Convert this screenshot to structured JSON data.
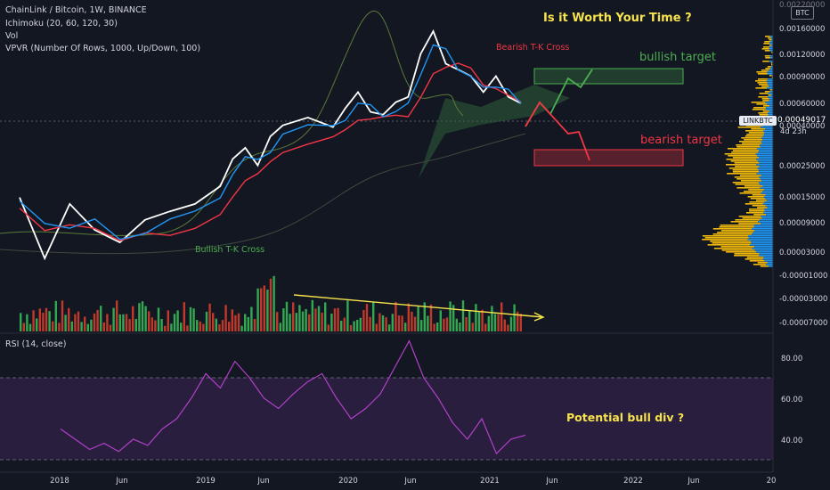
{
  "header": {
    "symbol_line": "ChainLink / Bitcoin, 1W, BINANCE",
    "indicator_ichimoku": "Ichimoku (20, 60, 120, 30)",
    "indicator_vol": "Vol",
    "indicator_vpvr": "VPVR (Number Of Rows, 1000, Up/Down, 100)"
  },
  "rsi_label": "RSI (14, close)",
  "price_scale": {
    "currency_badge": "BTC",
    "symbol_tag": "LINKBTC",
    "current_price": "0.00049017",
    "countdown": "4d 23h"
  },
  "annotations": {
    "headline": "Is it Worth Your Time ?",
    "bullish_target": "bullish target",
    "bearish_target": "bearish target",
    "bearish_cross": "Bearish T-K Cross",
    "bullish_cross": "Bullish T-K Cross",
    "bull_div": "Potential bull div ?"
  },
  "colors": {
    "background": "#131722",
    "price_line": "#ffffff",
    "tenkan": "#2196f3",
    "kijun": "#f23645",
    "volume_up": "#26a69a",
    "volume_down": "#ef5350",
    "headline": "#f7e34b",
    "bullish": "#4caf50",
    "bearish": "#f23645",
    "rsi": "#b040c8",
    "vpvr_up": "#f0b90b",
    "vpvr_down": "#2196f3"
  },
  "chart_data": [
    {
      "type": "line",
      "title": "ChainLink / Bitcoin, 1W, BINANCE",
      "x_ticks": [
        "2018",
        "Jun",
        "2019",
        "Jun",
        "2020",
        "Jun",
        "2021",
        "Jun",
        "2022",
        "Jun",
        "20"
      ],
      "y_ticks": [
        "0.00160000",
        "0.00120000",
        "0.00090000",
        "0.00060000",
        "0.00040000",
        "0.00025000",
        "0.00015000",
        "0.00009000",
        "0.00003000",
        "-0.00001000",
        "-0.00003000",
        "-0.00007000"
      ],
      "y_top_partial": "0.00220000",
      "series": [
        {
          "name": "LINKBTC",
          "x": [
            "2017-11",
            "2018-01",
            "2018-03",
            "2018-05",
            "2018-07",
            "2018-09",
            "2018-11",
            "2019-01",
            "2019-03",
            "2019-04",
            "2019-05",
            "2019-06",
            "2019-07",
            "2019-08",
            "2019-10",
            "2019-12",
            "2020-01",
            "2020-02",
            "2020-03",
            "2020-04",
            "2020-05",
            "2020-06",
            "2020-07",
            "2020-08",
            "2020-09",
            "2020-10",
            "2020-11",
            "2020-12",
            "2021-01",
            "2021-02",
            "2021-03"
          ],
          "values": [
            9e-05,
            3e-05,
            8e-05,
            5e-05,
            4e-05,
            6e-05,
            7e-05,
            8e-05,
            0.00011,
            0.00018,
            0.00022,
            0.00016,
            0.00027,
            0.00033,
            0.00038,
            0.00032,
            0.00045,
            0.0006,
            0.00042,
            0.0004,
            0.0005,
            0.00055,
            0.0012,
            0.0018,
            0.001,
            0.0009,
            0.0008,
            0.0006,
            0.0008,
            0.00055,
            0.00049
          ]
        }
      ]
    },
    {
      "type": "line",
      "title": "RSI (14, close)",
      "y_ticks": [
        "80.00",
        "60.00",
        "40.00"
      ],
      "series": [
        {
          "name": "RSI (14, close)",
          "values": [
            45,
            40,
            35,
            38,
            34,
            40,
            37,
            45,
            50,
            60,
            72,
            65,
            78,
            70,
            60,
            55,
            62,
            68,
            72,
            60,
            50,
            55,
            62,
            75,
            88,
            70,
            60,
            48,
            40,
            50,
            33,
            40,
            42
          ]
        }
      ]
    }
  ]
}
